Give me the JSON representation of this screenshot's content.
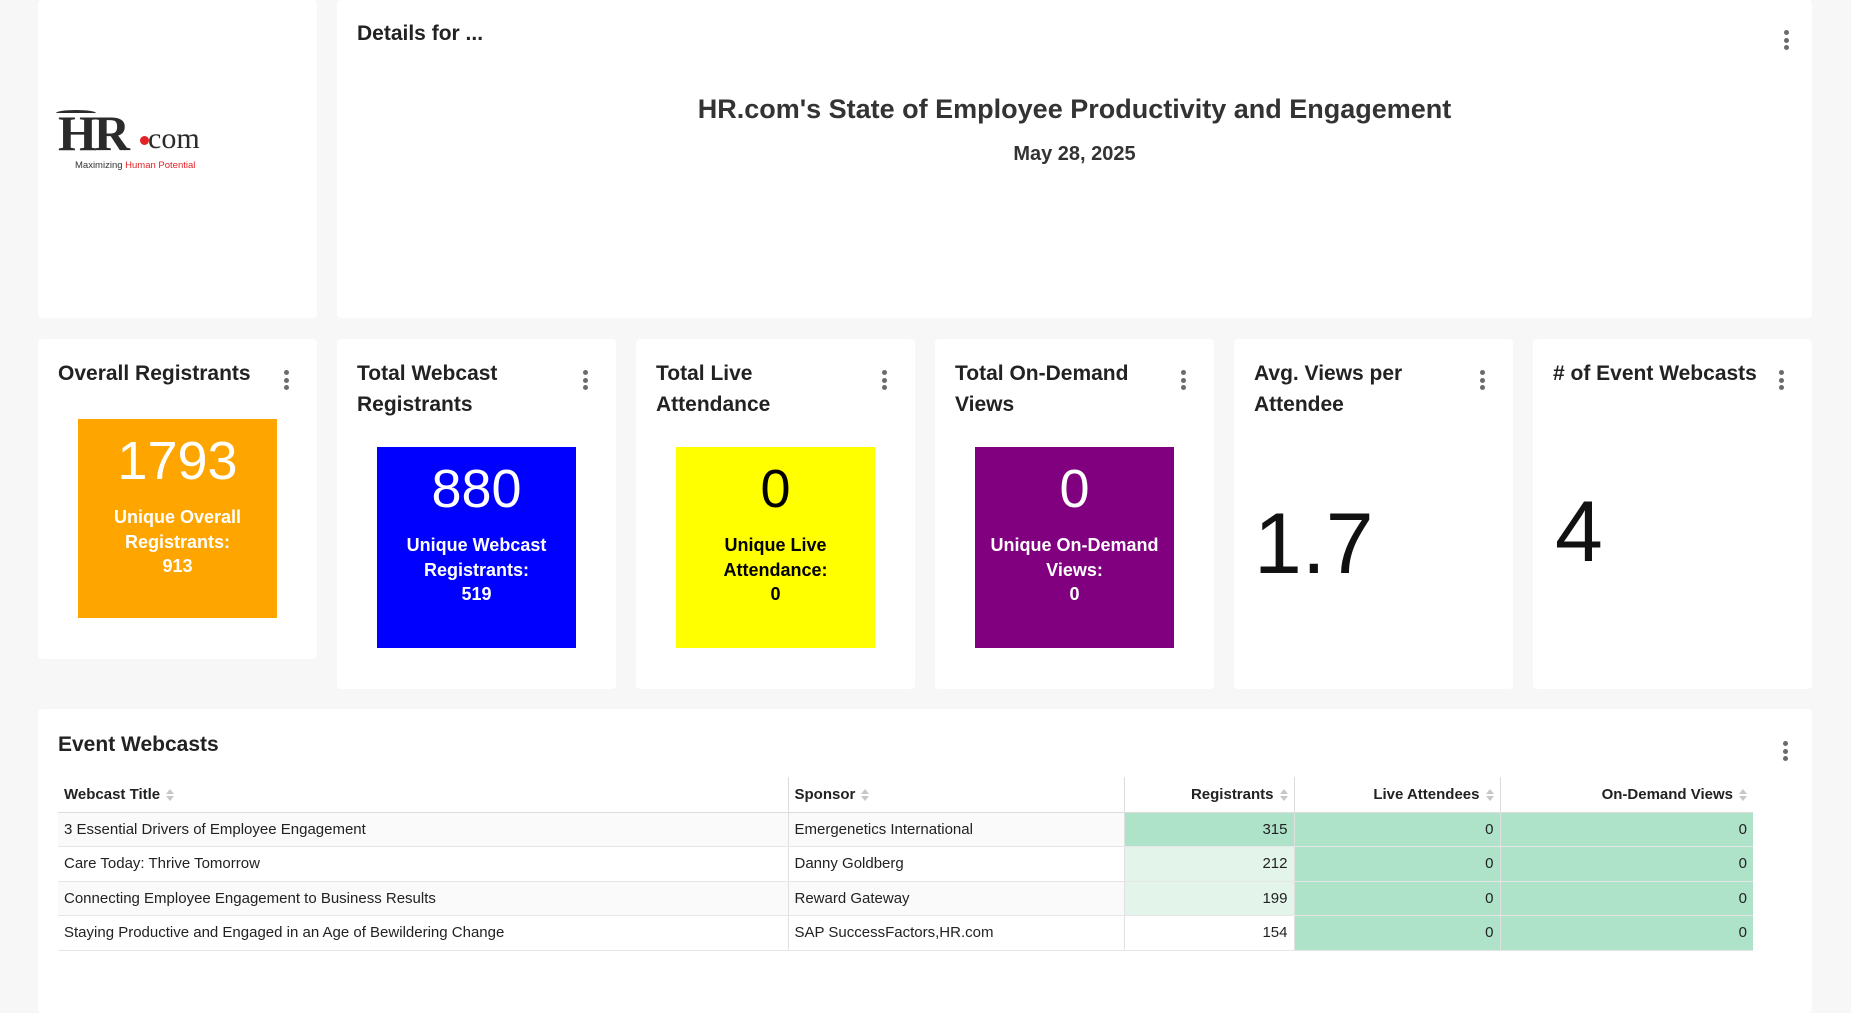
{
  "logo": {
    "brand": "HR",
    "domain": "com",
    "tagline_prefix": "Maximizing ",
    "tagline_accent": "Human Potential",
    "accent_color": "#e32226"
  },
  "details": {
    "heading": "Details for ...",
    "event_title": "HR.com's State of Employee Productivity and Engagement",
    "event_date": "May 28, 2025"
  },
  "kpis": [
    {
      "title": "Overall Registrants",
      "value": "1793",
      "sub_label": "Unique Overall Registrants:",
      "sub_value": "913",
      "color": "#ffa500",
      "text_color": "#ffffff"
    },
    {
      "title": "Total Webcast Registrants",
      "value": "880",
      "sub_label": "Unique Webcast Registrants:",
      "sub_value": "519",
      "color": "#0000ff",
      "text_color": "#ffffff"
    },
    {
      "title": "Total Live Attendance",
      "value": "0",
      "sub_label": "Unique Live Attendance:",
      "sub_value": "0",
      "color": "#ffff00",
      "text_color": "#000000"
    },
    {
      "title": "Total On-Demand Views",
      "value": "0",
      "sub_label": "Unique On-Demand Views:",
      "sub_value": "0",
      "color": "#800080",
      "text_color": "#ffffff"
    },
    {
      "title": "Avg. Views per Attendee",
      "value": "1.7"
    },
    {
      "title": "# of Event Webcasts",
      "value": "4"
    }
  ],
  "webcasts": {
    "heading": "Event Webcasts",
    "columns": [
      "Webcast Title",
      "Sponsor",
      "Registrants",
      "Live Attendees",
      "On-Demand Views"
    ],
    "rows": [
      {
        "title": "3 Essential Drivers of Employee Engagement",
        "sponsor": "Emergenetics International",
        "registrants": "315",
        "live": "0",
        "ondemand": "0"
      },
      {
        "title": "Care Today: Thrive Tomorrow",
        "sponsor": "Danny Goldberg",
        "registrants": "212",
        "live": "0",
        "ondemand": "0"
      },
      {
        "title": "Connecting Employee Engagement to Business Results",
        "sponsor": "Reward Gateway",
        "registrants": "199",
        "live": "0",
        "ondemand": "0"
      },
      {
        "title": "Staying Productive and Engaged in an Age of Bewildering Change",
        "sponsor": "SAP SuccessFactors,HR.com",
        "registrants": "154",
        "live": "0",
        "ondemand": "0"
      }
    ],
    "heat_colors": {
      "strong": "#aee3c9",
      "light": "#e3f4ea",
      "none": "#ffffff"
    }
  }
}
